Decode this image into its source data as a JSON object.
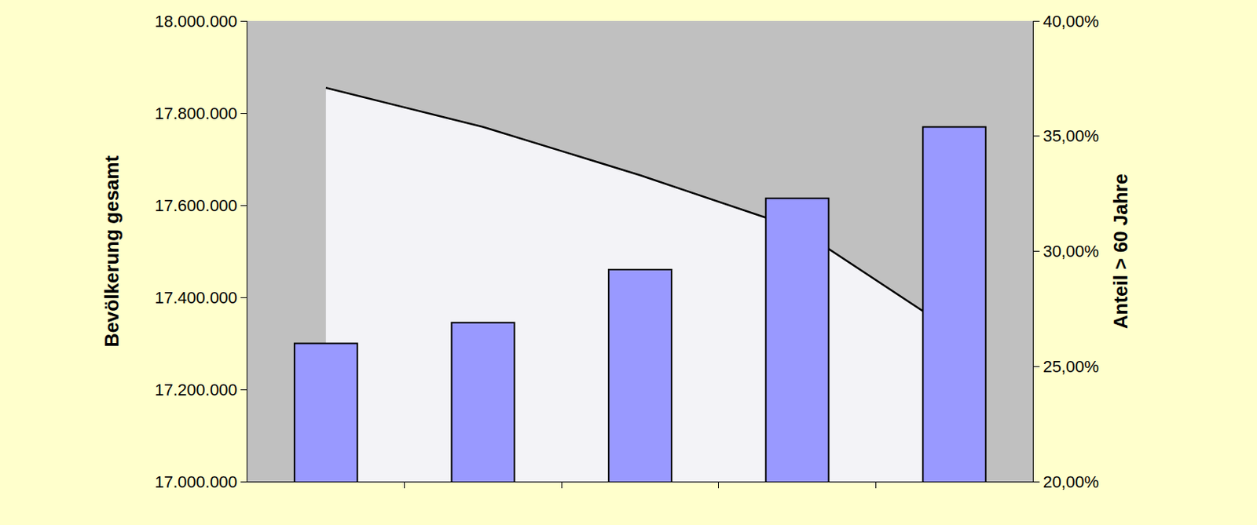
{
  "chart_data": {
    "type": "bar",
    "ylabel": "Bevölkerung gesamt",
    "y2label": "Anteil > 60 Jahre",
    "categories": [
      null,
      null,
      null,
      null,
      null
    ],
    "series": [
      {
        "type": "area",
        "color": "#000000",
        "values": [
          17855000,
          17770000,
          17665000,
          17550000,
          17325000
        ]
      },
      {
        "type": "bar",
        "axis": "y2",
        "color": "#9999ff",
        "values": [
          26.0,
          26.9,
          29.2,
          32.3,
          35.4
        ]
      }
    ],
    "ylim": [
      17000000,
      18000000
    ],
    "yticks": [
      {
        "value": 17000000,
        "label": "17.000.000"
      },
      {
        "value": 17200000,
        "label": "17.200.000"
      },
      {
        "value": 17400000,
        "label": "17.400.000"
      },
      {
        "value": 17600000,
        "label": "17.600.000"
      },
      {
        "value": 17800000,
        "label": "17.800.000"
      },
      {
        "value": 18000000,
        "label": "18.000.000"
      }
    ],
    "y2lim": [
      20,
      40
    ],
    "y2ticks": [
      {
        "value": 20,
        "label": "20,00%"
      },
      {
        "value": 25,
        "label": "25,00%"
      },
      {
        "value": 30,
        "label": "30,00%"
      },
      {
        "value": 35,
        "label": "35,00%"
      },
      {
        "value": 40,
        "label": "40,00%"
      }
    ],
    "grid": false,
    "tick_labels": "y"
  }
}
